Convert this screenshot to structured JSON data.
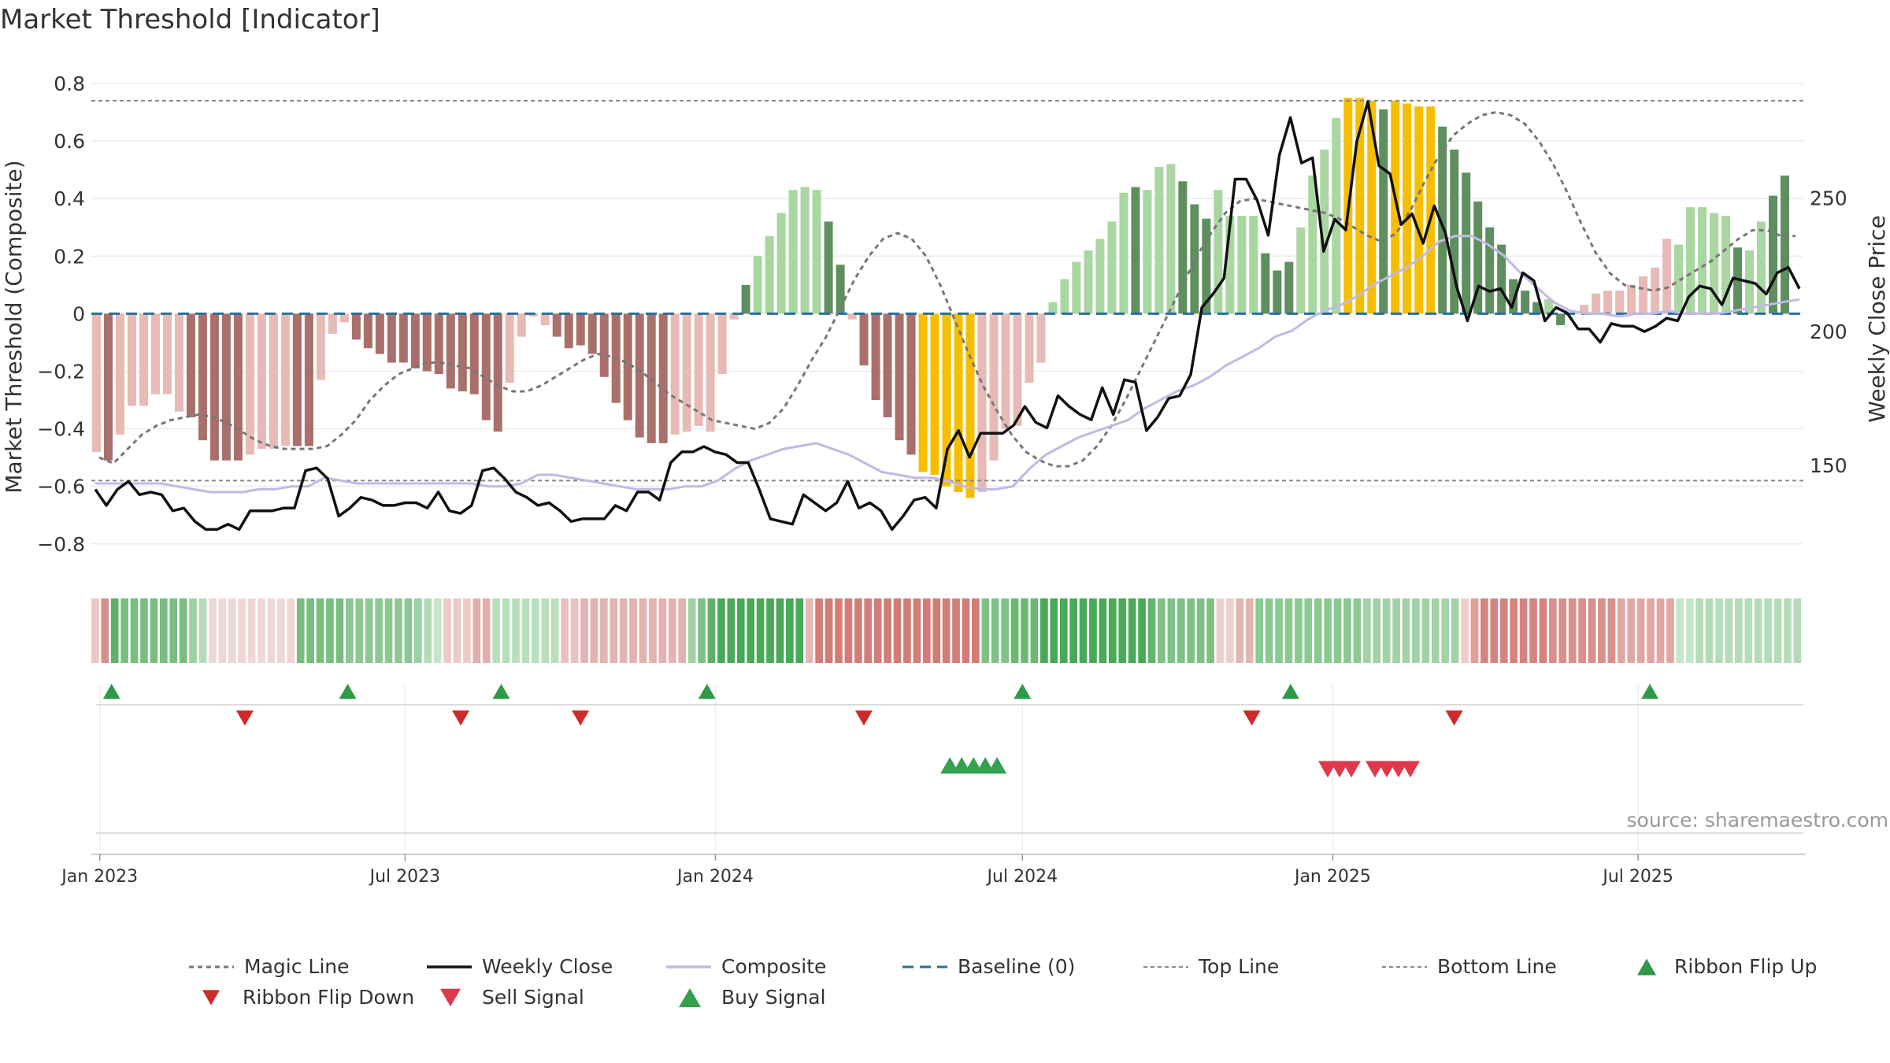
{
  "chart_data": {
    "type": "bar",
    "title": "Market Threshold [Indicator]",
    "ylabel_left": "Market Threshold (Composite)",
    "ylabel_right": "Weekly Close Price",
    "source": "source: sharemaestro.com",
    "ylim_left": [
      -0.88,
      0.83
    ],
    "ylim_right": [
      112,
      296
    ],
    "yticks_left": [
      {
        "v": 0.8,
        "label": "0.8"
      },
      {
        "v": 0.6,
        "label": "0.6"
      },
      {
        "v": 0.4,
        "label": "0.4"
      },
      {
        "v": 0.2,
        "label": "0.2"
      },
      {
        "v": 0,
        "label": "0"
      },
      {
        "v": -0.2,
        "label": "−0.2"
      },
      {
        "v": -0.4,
        "label": "−0.4"
      },
      {
        "v": -0.6,
        "label": "−0.6"
      },
      {
        "v": -0.8,
        "label": "−0.8"
      }
    ],
    "yticks_right": [
      {
        "v": 250,
        "label": "250"
      },
      {
        "v": 200,
        "label": "200"
      },
      {
        "v": 150,
        "label": "150"
      }
    ],
    "x_start": "2022-12-27",
    "x_end": "2025-10-07",
    "xticks": [
      {
        "date": "2023-01-01",
        "label": "Jan 2023"
      },
      {
        "date": "2023-07-01",
        "label": "Jul 2023"
      },
      {
        "date": "2024-01-01",
        "label": "Jan 2024"
      },
      {
        "date": "2024-07-01",
        "label": "Jul 2024"
      },
      {
        "date": "2025-01-01",
        "label": "Jan 2025"
      },
      {
        "date": "2025-07-01",
        "label": "Jul 2025"
      }
    ],
    "top_line": 0.74,
    "bottom_line": -0.58,
    "baseline": 0,
    "composite": [
      -0.48,
      -0.51,
      -0.42,
      -0.32,
      -0.32,
      -0.28,
      -0.28,
      -0.34,
      -0.36,
      -0.44,
      -0.51,
      -0.51,
      -0.51,
      -0.49,
      -0.47,
      -0.47,
      -0.46,
      -0.46,
      -0.46,
      -0.23,
      -0.07,
      -0.03,
      -0.09,
      -0.12,
      -0.14,
      -0.17,
      -0.17,
      -0.19,
      -0.2,
      -0.21,
      -0.26,
      -0.27,
      -0.28,
      -0.37,
      -0.41,
      -0.24,
      -0.08,
      -0.01,
      -0.04,
      -0.08,
      -0.12,
      -0.11,
      -0.14,
      -0.22,
      -0.31,
      -0.37,
      -0.43,
      -0.45,
      -0.45,
      -0.42,
      -0.41,
      -0.39,
      -0.41,
      -0.21,
      -0.02,
      0.1,
      0.2,
      0.27,
      0.35,
      0.43,
      0.44,
      0.43,
      0.32,
      0.17,
      -0.02,
      -0.18,
      -0.3,
      -0.36,
      -0.44,
      -0.49,
      -0.55,
      -0.56,
      -0.6,
      -0.62,
      -0.64,
      -0.62,
      -0.51,
      -0.4,
      -0.39,
      -0.24,
      -0.17,
      0.04,
      0.12,
      0.18,
      0.22,
      0.26,
      0.32,
      0.42,
      0.44,
      0.43,
      0.51,
      0.52,
      0.46,
      0.38,
      0.33,
      0.43,
      0.34,
      0.34,
      0.34,
      0.21,
      0.15,
      0.18,
      0.3,
      0.48,
      0.57,
      0.68,
      0.75,
      0.75,
      0.74,
      0.71,
      0.74,
      0.73,
      0.72,
      0.72,
      0.65,
      0.57,
      0.49,
      0.39,
      0.3,
      0.24,
      0.12,
      0.08,
      0.04,
      0.05,
      -0.04,
      0.0,
      0.03,
      0.07,
      0.08,
      0.08,
      0.1,
      0.13,
      0.16,
      0.26,
      0.24,
      0.37,
      0.37,
      0.35,
      0.34,
      0.23,
      0.22,
      0.32,
      0.41,
      0.48
    ],
    "bar_class": [
      4,
      5,
      4,
      4,
      4,
      4,
      4,
      4,
      5,
      5,
      5,
      5,
      5,
      4,
      4,
      4,
      4,
      5,
      5,
      4,
      4,
      4,
      5,
      5,
      5,
      5,
      5,
      5,
      5,
      5,
      5,
      5,
      5,
      5,
      5,
      4,
      4,
      4,
      4,
      5,
      5,
      5,
      5,
      5,
      5,
      5,
      5,
      5,
      5,
      4,
      4,
      4,
      4,
      4,
      4,
      1,
      2,
      2,
      2,
      2,
      2,
      2,
      1,
      1,
      4,
      5,
      5,
      5,
      5,
      5,
      3,
      3,
      3,
      3,
      3,
      4,
      4,
      4,
      4,
      4,
      4,
      2,
      2,
      2,
      2,
      2,
      2,
      2,
      1,
      2,
      2,
      2,
      1,
      1,
      1,
      2,
      2,
      2,
      2,
      1,
      1,
      1,
      2,
      2,
      2,
      2,
      3,
      3,
      3,
      1,
      3,
      3,
      3,
      3,
      1,
      1,
      1,
      1,
      1,
      1,
      1,
      1,
      1,
      2,
      1,
      4,
      4,
      4,
      4,
      4,
      4,
      4,
      4,
      4,
      2,
      2,
      2,
      2,
      2,
      1,
      2,
      2,
      1,
      1,
      1,
      1,
      2,
      2
    ],
    "magic_line": [
      -0.5,
      -0.52,
      -0.47,
      -0.42,
      -0.39,
      -0.37,
      -0.36,
      -0.35,
      -0.36,
      -0.38,
      -0.41,
      -0.44,
      -0.46,
      -0.47,
      -0.47,
      -0.47,
      -0.46,
      -0.42,
      -0.37,
      -0.3,
      -0.25,
      -0.21,
      -0.19,
      -0.17,
      -0.17,
      -0.18,
      -0.19,
      -0.22,
      -0.25,
      -0.27,
      -0.27,
      -0.25,
      -0.22,
      -0.19,
      -0.16,
      -0.14,
      -0.15,
      -0.17,
      -0.2,
      -0.24,
      -0.28,
      -0.31,
      -0.34,
      -0.37,
      -0.38,
      -0.39,
      -0.4,
      -0.38,
      -0.33,
      -0.25,
      -0.16,
      -0.08,
      0.02,
      0.12,
      0.2,
      0.26,
      0.28,
      0.26,
      0.2,
      0.1,
      -0.02,
      -0.14,
      -0.25,
      -0.34,
      -0.42,
      -0.48,
      -0.51,
      -0.53,
      -0.53,
      -0.51,
      -0.46,
      -0.39,
      -0.3,
      -0.2,
      -0.1,
      0.0,
      0.1,
      0.2,
      0.28,
      0.35,
      0.39,
      0.4,
      0.39,
      0.38,
      0.37,
      0.36,
      0.35,
      0.33,
      0.3,
      0.27,
      0.25,
      0.28,
      0.36,
      0.46,
      0.55,
      0.62,
      0.66,
      0.69,
      0.7,
      0.69,
      0.66,
      0.6,
      0.52,
      0.42,
      0.31,
      0.21,
      0.14,
      0.1,
      0.09,
      0.08,
      0.09,
      0.12,
      0.15,
      0.18,
      0.22,
      0.26,
      0.29,
      0.29,
      0.27,
      0.27
    ],
    "magic_dates_start": "2022-12-27",
    "composite_line": [
      -0.59,
      -0.59,
      -0.59,
      -0.59,
      -0.59,
      -0.6,
      -0.61,
      -0.62,
      -0.62,
      -0.62,
      -0.61,
      -0.61,
      -0.6,
      -0.6,
      -0.57,
      -0.58,
      -0.59,
      -0.59,
      -0.59,
      -0.59,
      -0.59,
      -0.59,
      -0.59,
      -0.59,
      -0.6,
      -0.6,
      -0.59,
      -0.56,
      -0.56,
      -0.57,
      -0.58,
      -0.59,
      -0.6,
      -0.61,
      -0.61,
      -0.61,
      -0.6,
      -0.6,
      -0.58,
      -0.54,
      -0.51,
      -0.49,
      -0.47,
      -0.46,
      -0.45,
      -0.47,
      -0.49,
      -0.52,
      -0.55,
      -0.56,
      -0.57,
      -0.57,
      -0.58,
      -0.6,
      -0.61,
      -0.61,
      -0.6,
      -0.54,
      -0.49,
      -0.46,
      -0.43,
      -0.41,
      -0.39,
      -0.37,
      -0.33,
      -0.3,
      -0.27,
      -0.25,
      -0.22,
      -0.18,
      -0.15,
      -0.12,
      -0.08,
      -0.06,
      -0.02,
      0.01,
      0.03,
      0.06,
      0.1,
      0.13,
      0.16,
      0.2,
      0.25,
      0.27,
      0.27,
      0.24,
      0.2,
      0.14,
      0.09,
      0.04,
      0.01,
      0.0,
      0.0,
      -0.01,
      0.0,
      0.0,
      0.01,
      0.0,
      0.0,
      0.0,
      0.01,
      0.02,
      0.03,
      0.04,
      0.05
    ],
    "close_start": "2022-12-27",
    "close": [
      141,
      135,
      141,
      144,
      139,
      140,
      139,
      133,
      134,
      129,
      126,
      126,
      128,
      126,
      133,
      133,
      133,
      134,
      134,
      148,
      149,
      145,
      131,
      134,
      138,
      137,
      135,
      135,
      136,
      136,
      134,
      140,
      133,
      132,
      135,
      148,
      149,
      145,
      140,
      138,
      135,
      136,
      133,
      129,
      130,
      130,
      130,
      135,
      133,
      140,
      140,
      137,
      151,
      155,
      155,
      157,
      155,
      154,
      151,
      151,
      141,
      130,
      129,
      128,
      139,
      136,
      133,
      136,
      144,
      134,
      136,
      133,
      126,
      131,
      137,
      138,
      134,
      156,
      163,
      153,
      162,
      162,
      162,
      165,
      172,
      166,
      164,
      176,
      172,
      169,
      167,
      179,
      169,
      182,
      181,
      163,
      168,
      175,
      176,
      184,
      209,
      214,
      220,
      257,
      257,
      249,
      236,
      266,
      280,
      263,
      265,
      230,
      242,
      238,
      271,
      286,
      262,
      259,
      240,
      244,
      233,
      247,
      237,
      217,
      204,
      217,
      215,
      216,
      209,
      222,
      219,
      204,
      209,
      207,
      201,
      201,
      196,
      203,
      202,
      202,
      200,
      202,
      205,
      204,
      213,
      217,
      216,
      210,
      220,
      219,
      218,
      214,
      222,
      224,
      216
    ],
    "ribbon_colors": [
      "#eec6c4",
      "#d98f8b",
      "#5fb06a",
      "#78be80",
      "#78be80",
      "#78be80",
      "#78be80",
      "#78be80",
      "#78be80",
      "#78be80",
      "#9ad2a0",
      "#b3dcb6",
      "#eed7d5",
      "#eed7d5",
      "#eed7d5",
      "#eed7d5",
      "#eed7d5",
      "#eed7d5",
      "#eed7d5",
      "#eed7d5",
      "#eed7d5",
      "#78be80",
      "#78be80",
      "#78be80",
      "#78be80",
      "#78be80",
      "#8dc794",
      "#8dc794",
      "#8dc794",
      "#8dc794",
      "#8dc794",
      "#8dc794",
      "#8dc794",
      "#9ad2a0",
      "#b3dcb6",
      "#c6e6c8",
      "#eccac8",
      "#eccac8",
      "#eccac8",
      "#e1b0ad",
      "#e1b0ad",
      "#b8dfbb",
      "#b8dfbb",
      "#b8dfbb",
      "#b8dfbb",
      "#b8dfbb",
      "#b8dfbb",
      "#b8dfbb",
      "#e8c1be",
      "#e8c1be",
      "#e2b3b0",
      "#e2b3b0",
      "#e2b3b0",
      "#e2b3b0",
      "#e2b3b0",
      "#e2b3b0",
      "#e2b3b0",
      "#e2b3b0",
      "#e2b3b0",
      "#e2b3b0",
      "#e2b3b0",
      "#9ed2a2",
      "#7dc184",
      "#5eb168",
      "#4aa957",
      "#4aa957",
      "#4aa957",
      "#4aa957",
      "#4aa957",
      "#4aa957",
      "#4aa957",
      "#4aa957",
      "#4aa957",
      "#e6b9b5",
      "#d27d78",
      "#d27d78",
      "#d27d78",
      "#d27d78",
      "#d27d78",
      "#d27d78",
      "#d27d78",
      "#d27d78",
      "#d27d78",
      "#d27d78",
      "#d27d78",
      "#d27d78",
      "#d27d78",
      "#d27d78",
      "#d27d78",
      "#d27d78",
      "#d27d78",
      "#80c387",
      "#80c387",
      "#80c387",
      "#6cb875",
      "#6cb875",
      "#6cb875",
      "#4aa957",
      "#4aa957",
      "#4aa957",
      "#4aa957",
      "#4aa957",
      "#4aa957",
      "#4aa957",
      "#4aa957",
      "#4aa957",
      "#4aa957",
      "#4aa957",
      "#61b46b",
      "#7dc184",
      "#7dc184",
      "#7dc184",
      "#7dc184",
      "#7dc184",
      "#7dc184",
      "#efcfcc",
      "#efcfcc",
      "#e3b6b2",
      "#e3b6b2",
      "#8ac990",
      "#8ac990",
      "#8ac990",
      "#8ac990",
      "#8ac990",
      "#8ac990",
      "#8ac990",
      "#8ac990",
      "#8ac990",
      "#8ac990",
      "#8ac990",
      "#a2d3a6",
      "#a2d3a6",
      "#a2d3a6",
      "#a2d3a6",
      "#a2d3a6",
      "#a2d3a6",
      "#a2d3a6",
      "#a2d3a6",
      "#a2d3a6",
      "#a2d3a6",
      "#f0cdca",
      "#e0a09b",
      "#d5837e",
      "#d5837e",
      "#d5837e",
      "#d5837e",
      "#d5837e",
      "#d5837e",
      "#d5837e",
      "#d98f8b",
      "#d98f8b",
      "#d98f8b",
      "#d98f8b",
      "#d98f8b",
      "#d98f8b",
      "#d98f8b",
      "#e2a7a3",
      "#e2a7a3",
      "#e2a7a3",
      "#e2a7a3",
      "#e2a7a3",
      "#e2a7a3",
      "#c5e6c8",
      "#c5e6c8",
      "#b5dcb8",
      "#b5dcb8",
      "#b5dcb8",
      "#b5dcb8",
      "#b5dcb8",
      "#b5dcb8",
      "#b5dcb8",
      "#b5dcb8",
      "#b5dcb8",
      "#b5dcb8",
      "#b5dcb8"
    ],
    "ribbon_flip_up": [
      "2023-01-08",
      "2023-05-28",
      "2023-08-27",
      "2023-12-27",
      "2024-07-01",
      "2024-12-07",
      "2025-07-08"
    ],
    "ribbon_flip_down": [
      "2023-03-28",
      "2023-08-03",
      "2023-10-13",
      "2024-03-29",
      "2024-11-14",
      "2025-03-14"
    ],
    "buy_signals": [
      "2024-05-19",
      "2024-05-26",
      "2024-06-02",
      "2024-06-09",
      "2024-06-16"
    ],
    "sell_signals": [
      "2024-12-29",
      "2025-01-05",
      "2025-01-12",
      "2025-01-26",
      "2025-02-02",
      "2025-02-09",
      "2025-02-16"
    ],
    "legend": [
      {
        "key": "magic",
        "label": "Magic Line"
      },
      {
        "key": "close",
        "label": "Weekly Close"
      },
      {
        "key": "composite",
        "label": "Composite"
      },
      {
        "key": "baseline",
        "label": "Baseline (0)"
      },
      {
        "key": "top",
        "label": "Top Line"
      },
      {
        "key": "bottom",
        "label": "Bottom Line"
      },
      {
        "key": "flipup",
        "label": "Ribbon Flip Up"
      },
      {
        "key": "flipdown",
        "label": "Ribbon Flip Down"
      },
      {
        "key": "sell",
        "label": "Sell Signal"
      },
      {
        "key": "buy",
        "label": "Buy Signal"
      }
    ],
    "colors": {
      "bar_dark_green": "#5f8f5f",
      "bar_light_green": "#a9d6a1",
      "bar_gold": "#f6be00",
      "bar_light_red": "#e8bab5",
      "bar_dark_red": "#a9706b",
      "close_line": "#111111",
      "composite_line": "#c2b9e3",
      "magic_line": "#777777",
      "baseline": "#2a6f9a",
      "threshold_lines": "#888888",
      "flip_up": "#2e9a47",
      "flip_down": "#cc2b2b",
      "buy": "#35a04e",
      "sell": "#e0384a"
    }
  }
}
